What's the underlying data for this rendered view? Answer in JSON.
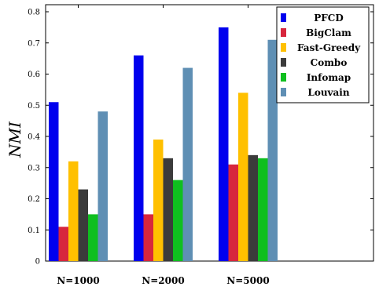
{
  "chart_data": {
    "type": "bar",
    "title": "",
    "xlabel": "",
    "ylabel": "NMI",
    "ylim": [
      0,
      0.82
    ],
    "yticks": [
      "0",
      "0.1",
      "0.2",
      "0.3",
      "0.4",
      "0.5",
      "0.6",
      "0.7",
      "0.8"
    ],
    "categories": [
      "N=1000",
      "N=2000",
      "N=5000"
    ],
    "series": [
      {
        "name": "PFCD",
        "color": "#0000ee",
        "values": [
          0.51,
          0.66,
          0.75
        ]
      },
      {
        "name": "BigClam",
        "color": "#d7263d",
        "values": [
          0.11,
          0.15,
          0.31
        ]
      },
      {
        "name": "Fast-Greedy",
        "color": "#ffc000",
        "values": [
          0.32,
          0.39,
          0.54
        ]
      },
      {
        "name": "Combo",
        "color": "#3b3b3b",
        "values": [
          0.23,
          0.33,
          0.34
        ]
      },
      {
        "name": "Infomap",
        "color": "#0fbf1f",
        "values": [
          0.15,
          0.26,
          0.33
        ]
      },
      {
        "name": "Louvain",
        "color": "#5f8fb4",
        "values": [
          0.48,
          0.62,
          0.71
        ]
      }
    ],
    "legend": "top-right",
    "grid": false
  }
}
